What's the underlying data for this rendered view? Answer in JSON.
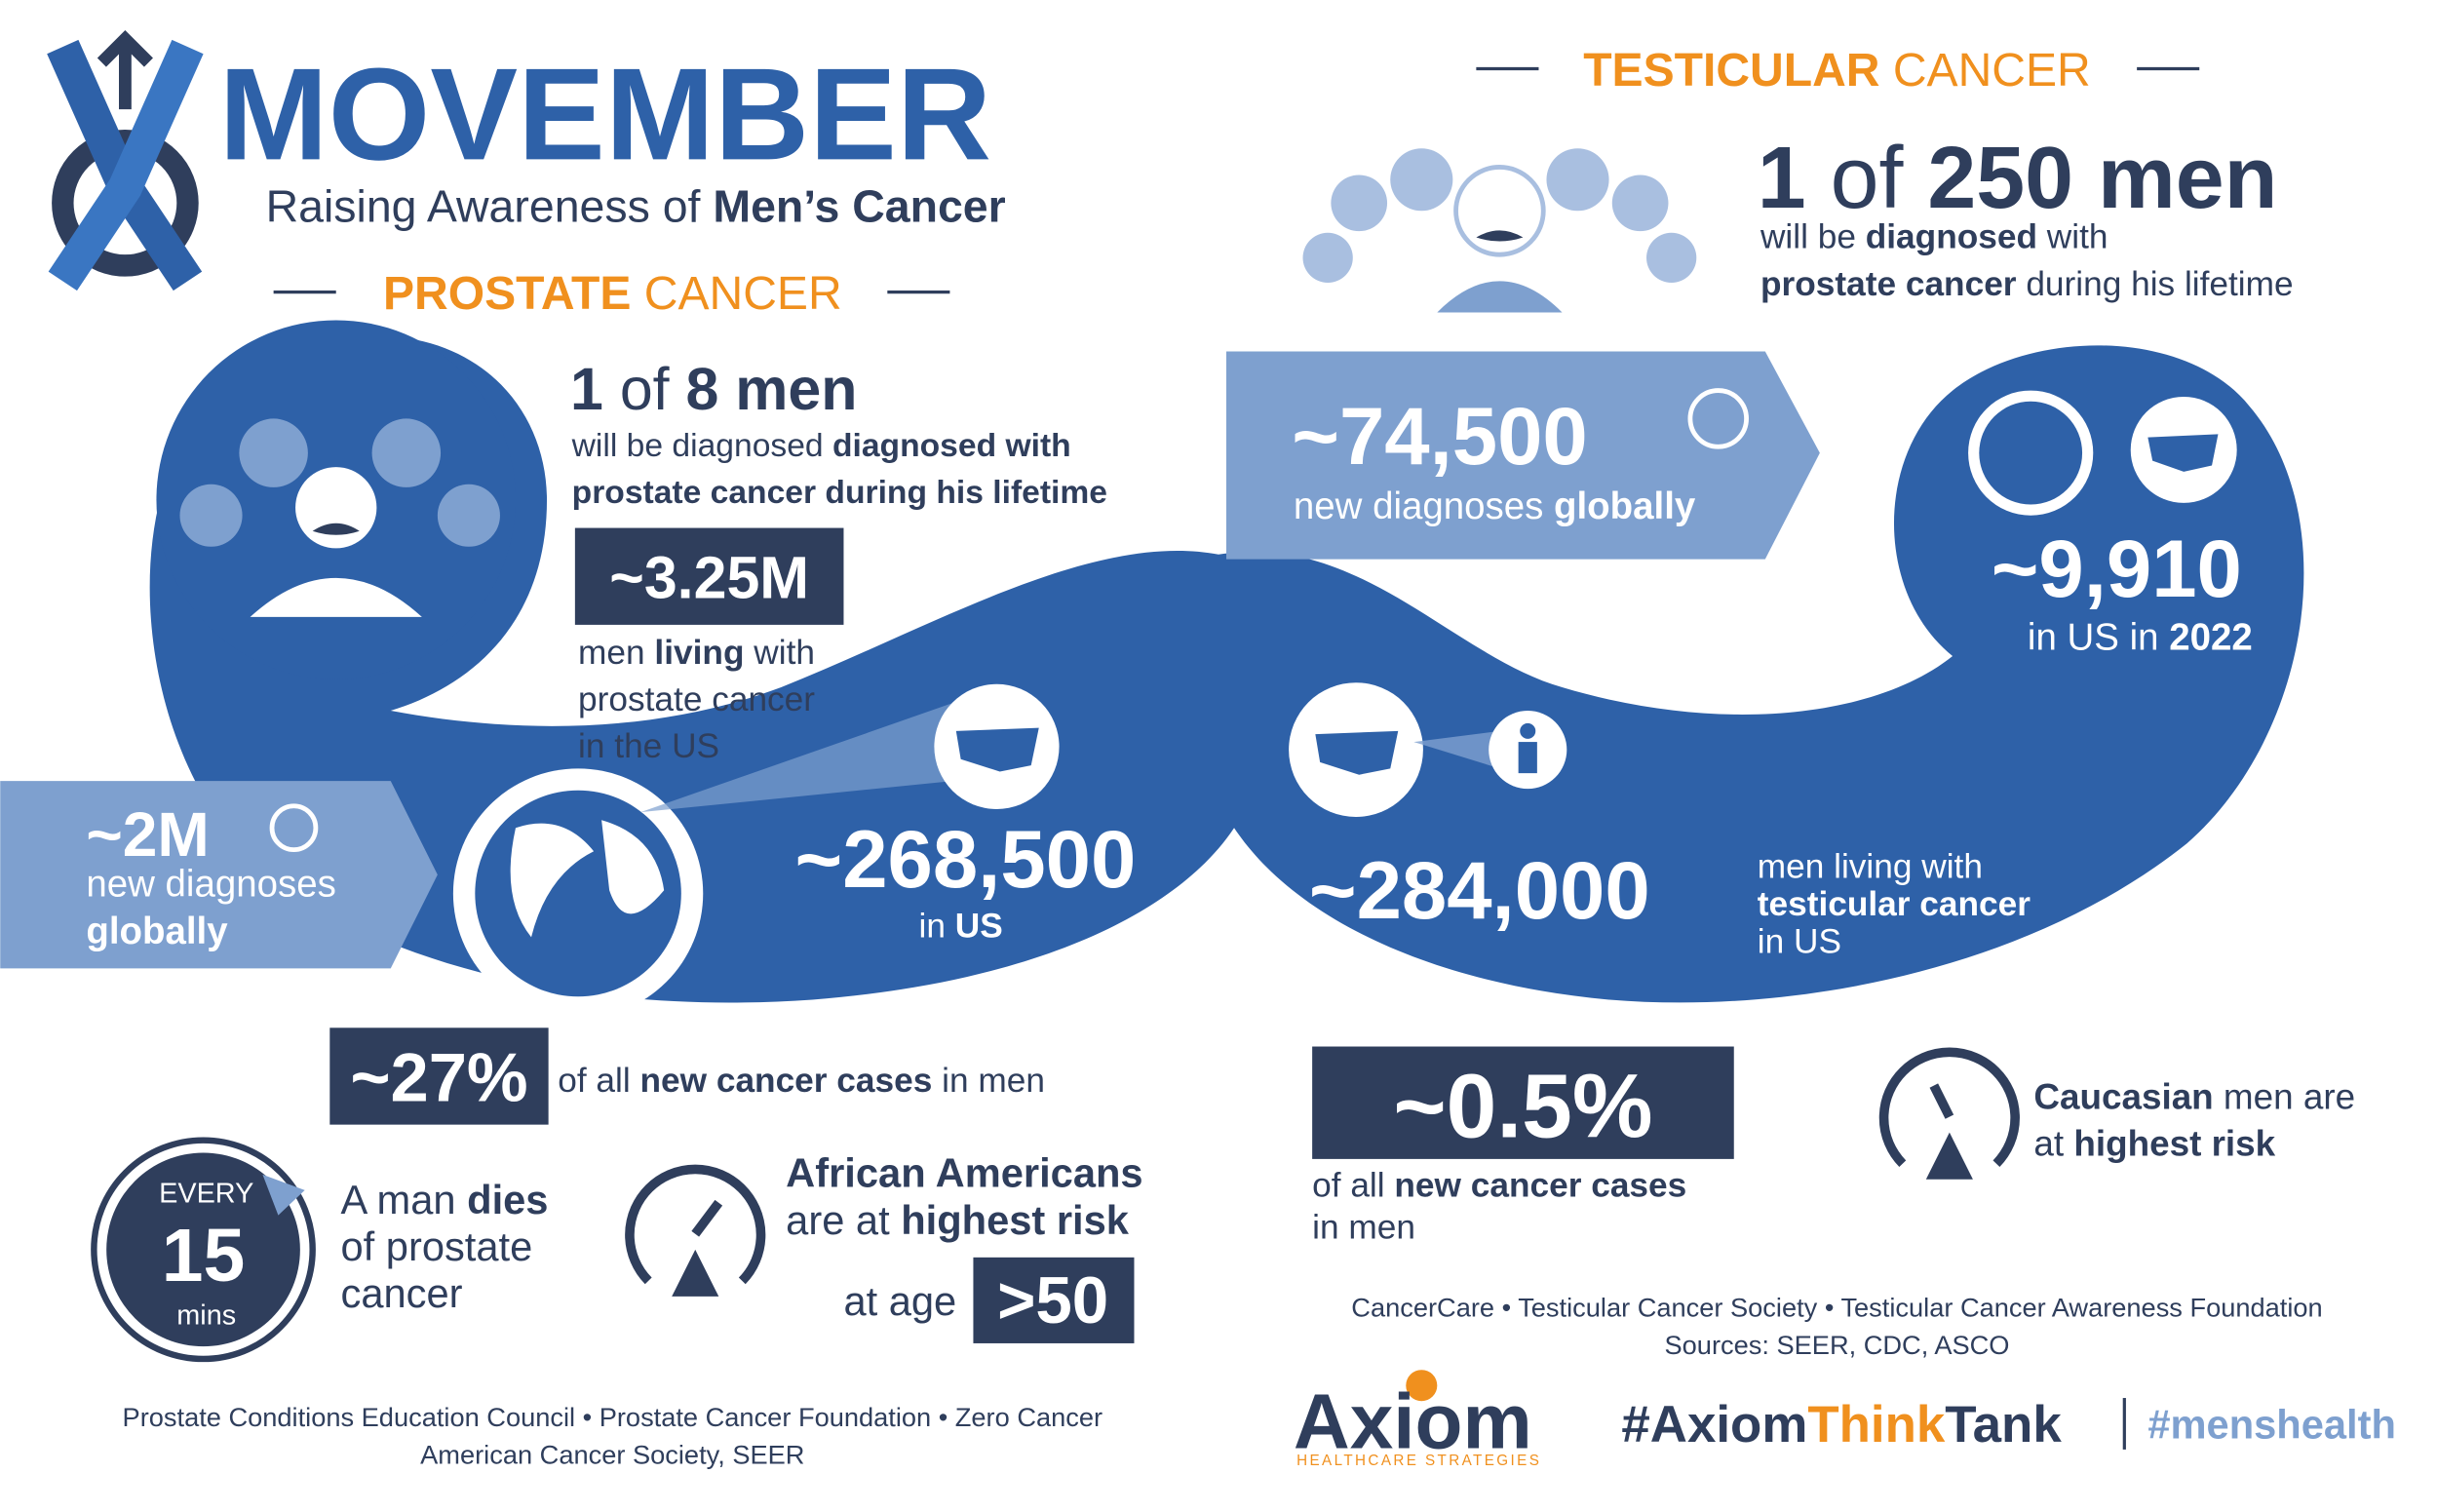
{
  "header": {
    "title": "MOVEMBER",
    "subtitle_pre": "Raising Awareness of ",
    "subtitle_bold": "Men’s Cancer"
  },
  "prostate": {
    "heading_bold": "PROSTATE",
    "heading_rest": " CANCER",
    "ratio": {
      "one": "1",
      "of": " of ",
      "rest": "8 men",
      "line1_pre": "will be diagnosed ",
      "line1_bold": "diagnosed with",
      "line2": "prostate cancer during his lifetime"
    },
    "living": {
      "value": "~3.25M",
      "pre": "men ",
      "bold": "living",
      "post": " with",
      "line2": "prostate cancer",
      "line3": "in the US"
    },
    "global": {
      "value": "~2M",
      "line1": "new diagnoses",
      "line2": "globally"
    },
    "us": {
      "value": "~268,500",
      "pre": "in ",
      "bold": "US"
    },
    "share": {
      "value": "~27%",
      "pre": "of all ",
      "bold": "new cancer cases",
      "post": " in men"
    },
    "clock": {
      "top": "EVERY",
      "number": "15",
      "unit": "mins"
    },
    "dies": {
      "pre": "A man ",
      "bold": "dies",
      "line2": "of prostate",
      "line3": "cancer"
    },
    "risk": {
      "line1": "African Americans",
      "line2_pre": "are at ",
      "line2_bold": "highest risk",
      "age_pre": "at age",
      "age": ">50"
    },
    "sources": [
      "Prostate Conditions Education Council  •  Prostate Cancer Foundation  •  Zero Cancer",
      "American Cancer Society, SEER"
    ]
  },
  "testicular": {
    "heading_bold": "TESTICULAR",
    "heading_rest": " CANCER",
    "ratio": {
      "one": "1",
      "of": " of ",
      "rest": "250 men",
      "line1_pre": "will be ",
      "line1_bold": "diagnosed",
      "line1_post": " with",
      "line2_bold": "prostate cancer",
      "line2_post": " during his lifetime"
    },
    "global": {
      "value": "~74,500",
      "pre": "new diagnoses ",
      "bold": "globally"
    },
    "us": {
      "value": "~9,910",
      "pre": "in US in ",
      "bold": "2022"
    },
    "living": {
      "value": "~284,000",
      "line1": "men living with",
      "line2": "testicular cancer",
      "line3": "in US"
    },
    "share": {
      "value": "~0.5%",
      "pre": "of all ",
      "bold": "new cancer cases",
      "line2": "in men"
    },
    "risk": {
      "bold": "Caucasian",
      "post": " men are",
      "line2_pre": "at ",
      "line2_bold": "highest risk"
    },
    "sources": [
      "CancerCare  •  Testicular Cancer Society  •  Testicular Cancer Awareness Foundation",
      "Sources: SEER, CDC, ASCO"
    ]
  },
  "footer": {
    "brand": "Axiom",
    "tagline": "HEALTHCARE STRATEGIES",
    "hash1": "#Axiom",
    "hash2": "Think",
    "hash3": "Tank",
    "hash4": "#menshealth"
  }
}
